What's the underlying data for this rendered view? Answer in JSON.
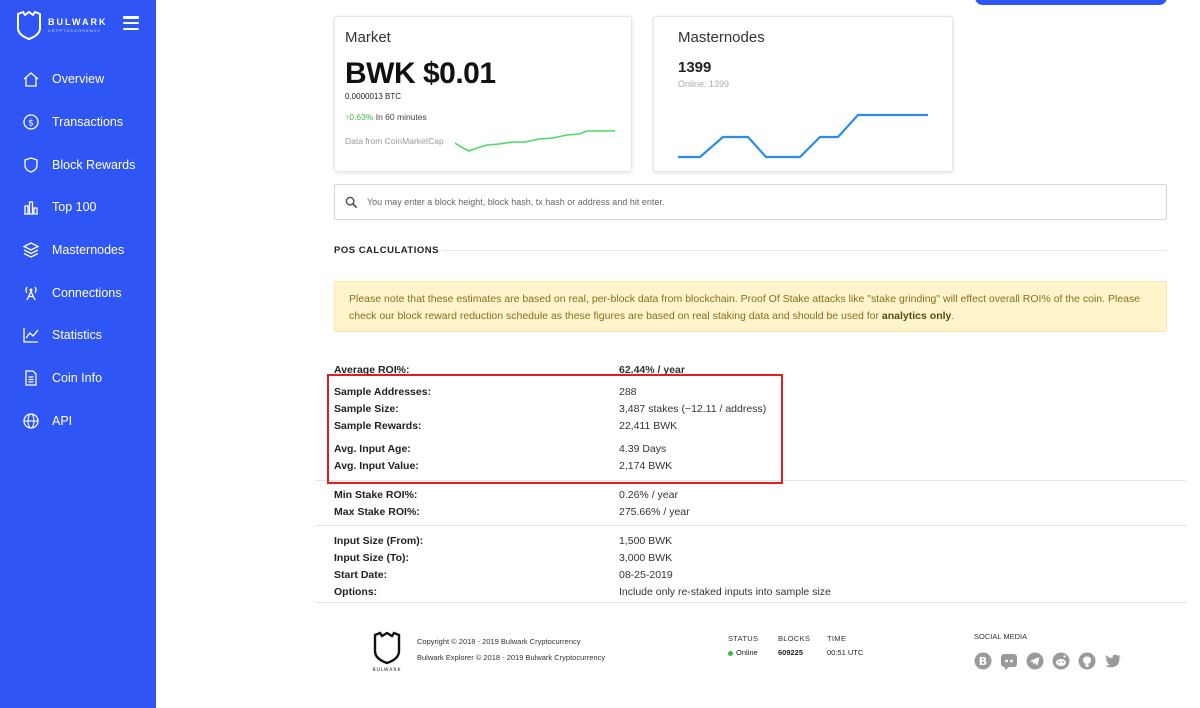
{
  "brand": {
    "name": "BULWARK",
    "sub": "CRYPTOCURRENCY"
  },
  "nav": [
    {
      "label": "Overview"
    },
    {
      "label": "Transactions"
    },
    {
      "label": "Block Rewards"
    },
    {
      "label": "Top 100"
    },
    {
      "label": "Masternodes"
    },
    {
      "label": "Connections"
    },
    {
      "label": "Statistics"
    },
    {
      "label": "Coin Info"
    },
    {
      "label": "API"
    }
  ],
  "market": {
    "title": "Market",
    "price": "BWK $0.01",
    "btc": "0.0000013 BTC",
    "change_pct": "0.63%",
    "change_period": "In 60 minutes",
    "source": "Data from CoinMarketCap",
    "spark_color": "#4cd964"
  },
  "masternodes": {
    "title": "Masternodes",
    "count": "1399",
    "online": "Online: 1399",
    "spark_color": "#2d8ce6"
  },
  "search": {
    "placeholder": "You may enter a block height, block hash, tx hash or address and hit enter."
  },
  "pos": {
    "title": "POS CALCULATIONS",
    "notice_pre": "Please note that these estimates are based on real, per-block data from blockchain. Proof Of Stake attacks like \"stake grinding\" will effect overall ROI% of the coin. Please check our block reward reduction schedule as these figures are based on real staking data and should be used for ",
    "notice_bold": "analytics only",
    "notice_post": ".",
    "rows": [
      {
        "label": "Average ROI%:",
        "value": "62.44% / year"
      },
      {
        "label": "Sample Addresses:",
        "value": "288"
      },
      {
        "label": "Sample Size:",
        "value": "3,487 stakes (~12.11 / address)"
      },
      {
        "label": "Sample Rewards:",
        "value": "22,411 BWK"
      },
      {
        "label": "Avg. Input Age:",
        "value": "4.39 Days"
      },
      {
        "label": "Avg. Input Value:",
        "value": "2,174 BWK"
      },
      {
        "label": "Min Stake ROI%:",
        "value": "0.26% / year"
      },
      {
        "label": "Max Stake ROI%:",
        "value": "275.66% / year"
      },
      {
        "label": "Input Size (From):",
        "value": "1,500 BWK"
      },
      {
        "label": "Input Size (To):",
        "value": "3,000 BWK"
      },
      {
        "label": "Start Date:",
        "value": "08-25-2019"
      },
      {
        "label": "Options:",
        "value": "Include only re-staked inputs into sample size"
      }
    ]
  },
  "footer": {
    "logo_text": "BULWARK",
    "copyright1": "Copyright © 2018 - 2019 Bulwark Cryptocurrency",
    "copyright2": "Bulwark Explorer © 2018 - 2019 Bulwark Cryptocurrency",
    "status_h": "STATUS",
    "status_v": "Online",
    "blocks_h": "BLOCKS",
    "blocks_v": "609225",
    "time_h": "TIME",
    "time_v": "00:51 UTC",
    "social_title": "SOCIAL MEDIA",
    "socials": [
      "bitcoin-icon",
      "discord-icon",
      "telegram-icon",
      "reddit-icon",
      "github-icon",
      "twitter-icon"
    ]
  },
  "colors": {
    "sidebar": "#2f55f4",
    "highlight": "#e41e1e",
    "alert_bg": "#fff4cc"
  }
}
